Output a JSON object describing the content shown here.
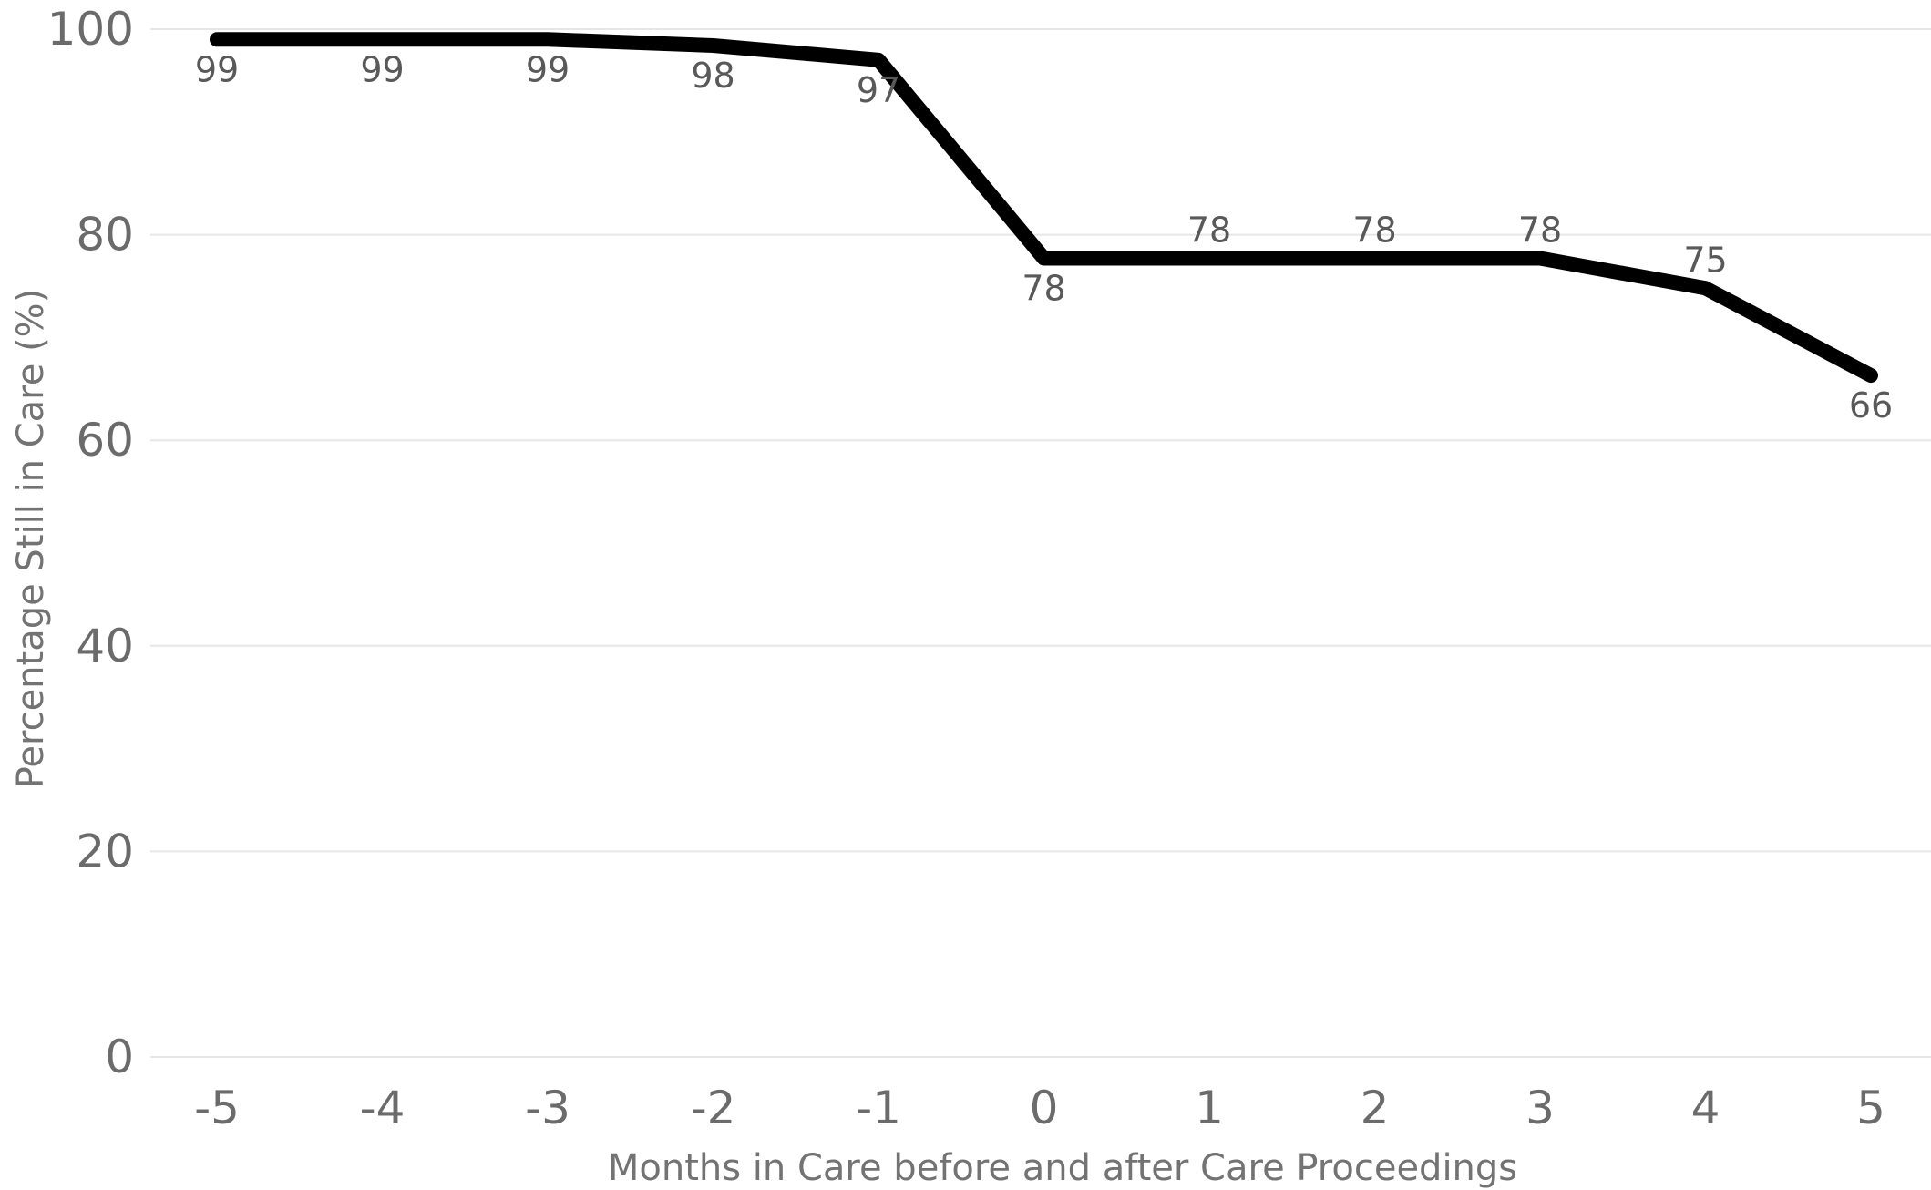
{
  "chart_data": {
    "type": "line",
    "title": "",
    "xlabel": "Months in Care before and after Care Proceedings",
    "ylabel": "Percentage Still in Care (%)",
    "x": [
      -5,
      -4,
      -3,
      -2,
      -1,
      0,
      1,
      2,
      3,
      4,
      5
    ],
    "x_tick_labels": [
      "-5",
      "-4",
      "-3",
      "-2",
      "-1",
      "0",
      "1",
      "2",
      "3",
      "4",
      "5"
    ],
    "ylim": [
      0,
      100
    ],
    "y_ticks": [
      0,
      20,
      40,
      60,
      80,
      100
    ],
    "grid": "horizontal",
    "legend": "none",
    "series": [
      {
        "values": [
          99,
          99,
          99,
          98.4,
          97,
          77.7,
          77.7,
          77.7,
          77.7,
          74.8,
          66.3
        ],
        "data_labels": [
          "99",
          "99",
          "99",
          "98",
          "97",
          "78",
          "78",
          "78",
          "78",
          "75",
          "66"
        ],
        "label_placement": [
          "below",
          "below",
          "below",
          "below",
          "below",
          "below",
          "above",
          "above",
          "above",
          "above",
          "below"
        ],
        "color": "#000000"
      }
    ]
  }
}
